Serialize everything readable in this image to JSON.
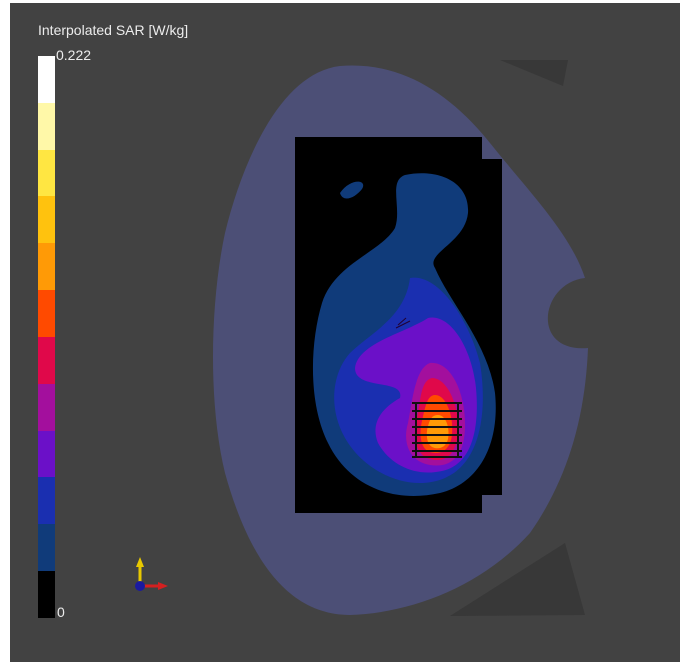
{
  "colorbar": {
    "title": "Interpolated SAR [W/kg]",
    "max_label": "0.222",
    "min_label": "0",
    "colors": [
      "#ffffff",
      "#fff8a8",
      "#ffe642",
      "#ffc20e",
      "#ff9a06",
      "#ff4a00",
      "#e0084a",
      "#a30f9d",
      "#6b10c8",
      "#1a2fb0",
      "#103b7a",
      "#000000"
    ]
  },
  "colors": {
    "background": "#424242",
    "phantom": "#4c4f76",
    "box": "#000000"
  }
}
